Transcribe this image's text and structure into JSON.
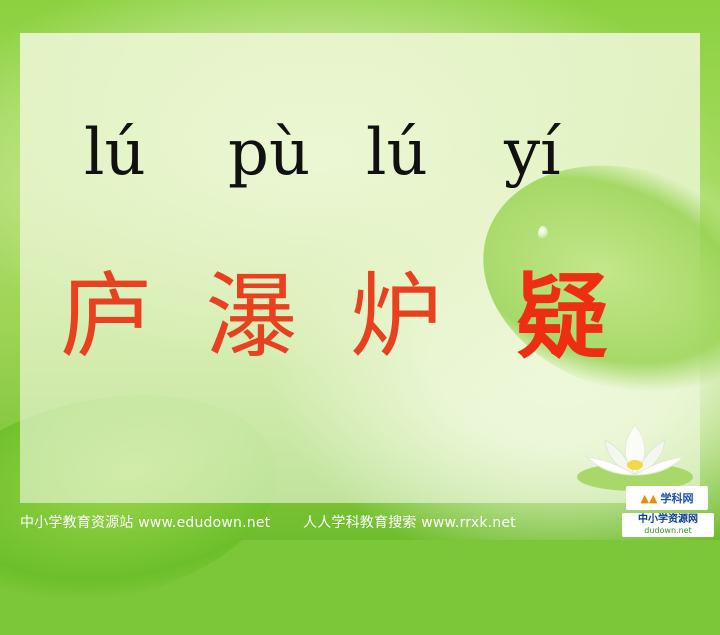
{
  "slide": {
    "pinyin": [
      "lú",
      "pù",
      "lú",
      "yí"
    ],
    "characters": [
      "庐",
      "瀑",
      "炉",
      "疑"
    ]
  },
  "footer": {
    "site1": "中小学教育资源站 www.edudown.net",
    "site2": "人人学科教育搜索 www.rrxk.net"
  },
  "logos": {
    "logo1_text": "学科网",
    "logo2_title": "中小学资源网",
    "logo2_url": "dudown.net"
  },
  "colors": {
    "background_green": "#7cc63a",
    "pinyin_text": "#111111",
    "character_red": "#e8411f"
  }
}
